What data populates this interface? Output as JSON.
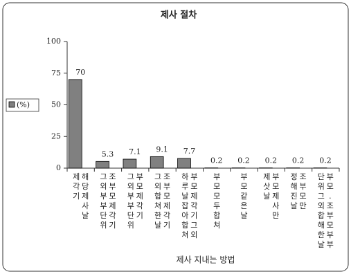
{
  "chart_data": {
    "type": "bar",
    "title": "제사 절차",
    "x_label": "제사 지내는 방법",
    "categories": [
      "해당제사날 제각기",
      "조부모제각기 그외부부단위",
      "부모제각기 그외부부단위",
      "조부모제각기 그외합쳐한날",
      "부모제각기그외 하루날잡아합쳐",
      "부모모두합쳐",
      "부모같은날",
      "부모제사만 제삿날",
      "조부모만 정해진날",
      "부모.조부모부부 단위그외합해한날"
    ],
    "series": [
      {
        "name": "(%)",
        "color": "#808080",
        "values": [
          70,
          5.3,
          7.1,
          9.1,
          7.7,
          0.2,
          0.2,
          0.2,
          0.2,
          0.2
        ]
      }
    ],
    "ylim": [
      0,
      100
    ],
    "yticks": [
      0,
      25,
      50,
      75,
      100
    ],
    "legend": "left"
  }
}
